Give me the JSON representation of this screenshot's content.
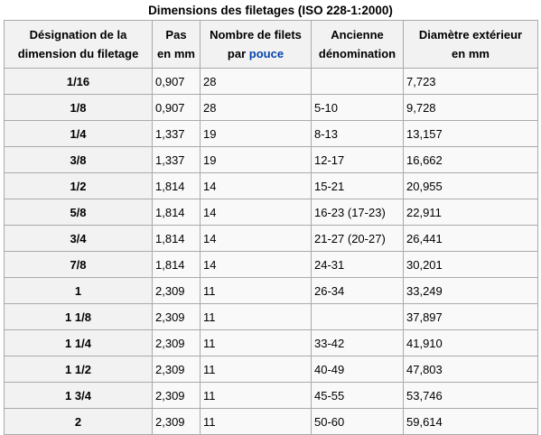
{
  "caption": "Dimensions des filetages (ISO 228-1:2000)",
  "headers": {
    "designation_line1": "Désignation de la",
    "designation_line2": "dimension du filetage",
    "pas_line1": "Pas",
    "pas_line2": "en mm",
    "filets_line1": "Nombre de filets",
    "filets_line2_prefix": "par ",
    "filets_link": "pouce",
    "ancienne_line1": "Ancienne",
    "ancienne_line2": "dénomination",
    "diametre_line1": "Diamètre extérieur",
    "diametre_line2": "en mm"
  },
  "rows": [
    {
      "designation": "1/16",
      "pas": "0,907",
      "filets": "28",
      "ancienne": "",
      "diametre": "7,723"
    },
    {
      "designation": "1/8",
      "pas": "0,907",
      "filets": "28",
      "ancienne": "5-10",
      "diametre": "9,728"
    },
    {
      "designation": "1/4",
      "pas": "1,337",
      "filets": "19",
      "ancienne": "8-13",
      "diametre": "13,157"
    },
    {
      "designation": "3/8",
      "pas": "1,337",
      "filets": "19",
      "ancienne": "12-17",
      "diametre": "16,662"
    },
    {
      "designation": "1/2",
      "pas": "1,814",
      "filets": "14",
      "ancienne": "15-21",
      "diametre": "20,955"
    },
    {
      "designation": "5/8",
      "pas": "1,814",
      "filets": "14",
      "ancienne": "16-23 (17-23)",
      "diametre": "22,911"
    },
    {
      "designation": "3/4",
      "pas": "1,814",
      "filets": "14",
      "ancienne": "21-27 (20-27)",
      "diametre": "26,441"
    },
    {
      "designation": "7/8",
      "pas": "1,814",
      "filets": "14",
      "ancienne": "24-31",
      "diametre": "30,201"
    },
    {
      "designation": "1",
      "pas": "2,309",
      "filets": "11",
      "ancienne": "26-34",
      "diametre": "33,249"
    },
    {
      "designation": "1 1/8",
      "pas": "2,309",
      "filets": "11",
      "ancienne": "",
      "diametre": "37,897"
    },
    {
      "designation": "1 1/4",
      "pas": "2,309",
      "filets": "11",
      "ancienne": "33-42",
      "diametre": "41,910"
    },
    {
      "designation": "1 1/2",
      "pas": "2,309",
      "filets": "11",
      "ancienne": "40-49",
      "diametre": "47,803"
    },
    {
      "designation": "1 3/4",
      "pas": "2,309",
      "filets": "11",
      "ancienne": "45-55",
      "diametre": "53,746"
    },
    {
      "designation": "2",
      "pas": "2,309",
      "filets": "11",
      "ancienne": "50-60",
      "diametre": "59,614"
    }
  ]
}
